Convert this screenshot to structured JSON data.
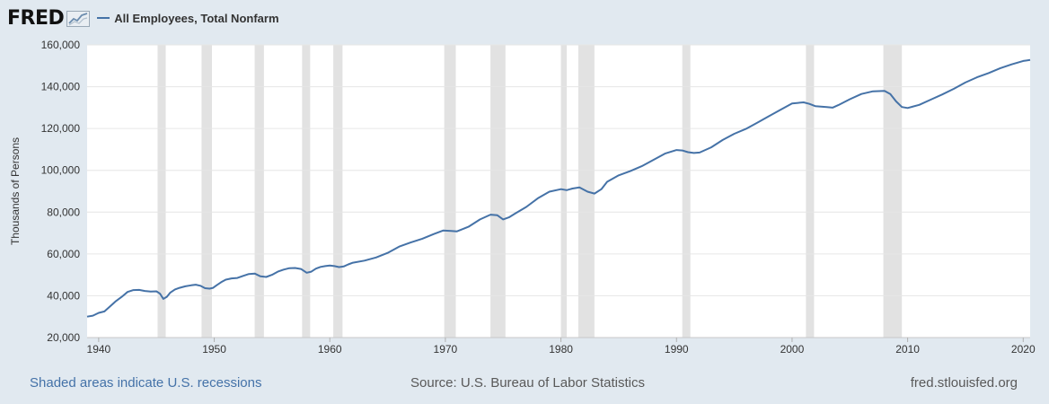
{
  "header": {
    "logo_text": "FRED",
    "logo_icon": "line-chart-logo-icon"
  },
  "footer": {
    "recessions_note": "Shaded areas indicate U.S. recessions",
    "source": "Source: U.S. Bureau of Labor Statistics",
    "site": "fred.stlouisfed.org"
  },
  "chart_data": {
    "type": "line",
    "ylabel": "Thousands of Persons",
    "xlim": [
      1939,
      2020.6
    ],
    "ylim": [
      20000,
      160000
    ],
    "y_ticks": [
      20000,
      40000,
      60000,
      80000,
      100000,
      120000,
      140000,
      160000
    ],
    "y_tick_labels": [
      "20,000",
      "40,000",
      "60,000",
      "80,000",
      "100,000",
      "120,000",
      "140,000",
      "160,000"
    ],
    "x_ticks": [
      1940,
      1950,
      1960,
      1970,
      1980,
      1990,
      2000,
      2010,
      2020
    ],
    "x_tick_labels": [
      "1940",
      "1950",
      "1960",
      "1970",
      "1980",
      "1990",
      "2000",
      "2010",
      "2020"
    ],
    "grid": true,
    "colors": {
      "series": "#4572a7",
      "recession": "#e2e2e2"
    },
    "recessions": [
      [
        1945.1,
        1945.8
      ],
      [
        1948.9,
        1949.8
      ],
      [
        1953.5,
        1954.3
      ],
      [
        1957.6,
        1958.3
      ],
      [
        1960.3,
        1961.1
      ],
      [
        1969.9,
        1970.9
      ],
      [
        1973.9,
        1975.2
      ],
      [
        1980.0,
        1980.5
      ],
      [
        1981.5,
        1982.9
      ],
      [
        1990.5,
        1991.2
      ],
      [
        2001.2,
        2001.9
      ],
      [
        2007.9,
        2009.5
      ]
    ],
    "series": [
      {
        "name": "All Employees, Total Nonfarm",
        "x": [
          1939.0,
          1939.5,
          1940.0,
          1940.5,
          1941.0,
          1941.5,
          1942.0,
          1942.5,
          1943.0,
          1943.5,
          1944.0,
          1944.5,
          1945.0,
          1945.3,
          1945.6,
          1945.9,
          1946.2,
          1946.6,
          1947.0,
          1947.5,
          1948.0,
          1948.4,
          1948.8,
          1949.2,
          1949.6,
          1949.9,
          1950.2,
          1950.6,
          1951.0,
          1951.5,
          1952.0,
          1952.5,
          1953.0,
          1953.5,
          1954.0,
          1954.5,
          1955.0,
          1955.5,
          1956.0,
          1956.5,
          1957.0,
          1957.5,
          1958.0,
          1958.4,
          1958.8,
          1959.2,
          1959.6,
          1960.0,
          1960.4,
          1960.8,
          1961.2,
          1961.6,
          1962.0,
          1963.0,
          1964.0,
          1965.0,
          1966.0,
          1967.0,
          1968.0,
          1969.0,
          1969.8,
          1970.5,
          1971.0,
          1972.0,
          1973.0,
          1973.9,
          1974.5,
          1975.0,
          1975.5,
          1976.0,
          1977.0,
          1978.0,
          1979.0,
          1980.0,
          1980.5,
          1981.0,
          1981.6,
          1982.3,
          1982.9,
          1983.5,
          1984.0,
          1985.0,
          1986.0,
          1987.0,
          1988.0,
          1989.0,
          1990.0,
          1990.5,
          1991.0,
          1991.5,
          1992.0,
          1993.0,
          1994.0,
          1995.0,
          1996.0,
          1997.0,
          1998.0,
          1999.0,
          2000.0,
          2001.0,
          2001.5,
          2002.0,
          2003.0,
          2003.5,
          2004.0,
          2005.0,
          2006.0,
          2007.0,
          2008.0,
          2008.5,
          2009.0,
          2009.5,
          2010.0,
          2011.0,
          2012.0,
          2013.0,
          2014.0,
          2015.0,
          2016.0,
          2017.0,
          2018.0,
          2019.0,
          2020.0,
          2020.6
        ],
        "y": [
          30000,
          30500,
          31800,
          32500,
          35000,
          37500,
          39500,
          41800,
          42700,
          42800,
          42300,
          42000,
          42100,
          41000,
          38500,
          39500,
          41500,
          43000,
          43800,
          44500,
          45000,
          45300,
          44800,
          43600,
          43400,
          43800,
          45000,
          46500,
          47700,
          48300,
          48500,
          49500,
          50400,
          50600,
          49300,
          49000,
          50000,
          51500,
          52500,
          53200,
          53300,
          52800,
          51000,
          51500,
          53000,
          53800,
          54200,
          54500,
          54200,
          53700,
          54000,
          55000,
          55800,
          56800,
          58300,
          60500,
          63500,
          65500,
          67300,
          69500,
          71200,
          71000,
          70800,
          73000,
          76500,
          78800,
          78500,
          76500,
          77500,
          79200,
          82500,
          86600,
          89800,
          91000,
          90500,
          91300,
          91800,
          89800,
          88900,
          91000,
          94500,
          97600,
          99600,
          102000,
          105000,
          108000,
          109700,
          109500,
          108700,
          108300,
          108500,
          111000,
          114500,
          117500,
          119800,
          122800,
          125900,
          129000,
          132000,
          132500,
          131800,
          130700,
          130300,
          130000,
          131200,
          134000,
          136500,
          137800,
          138000,
          136500,
          133000,
          130300,
          129800,
          131300,
          133800,
          136300,
          139000,
          142000,
          144500,
          146500,
          148800,
          150700,
          152300,
          152800
        ]
      }
    ]
  }
}
